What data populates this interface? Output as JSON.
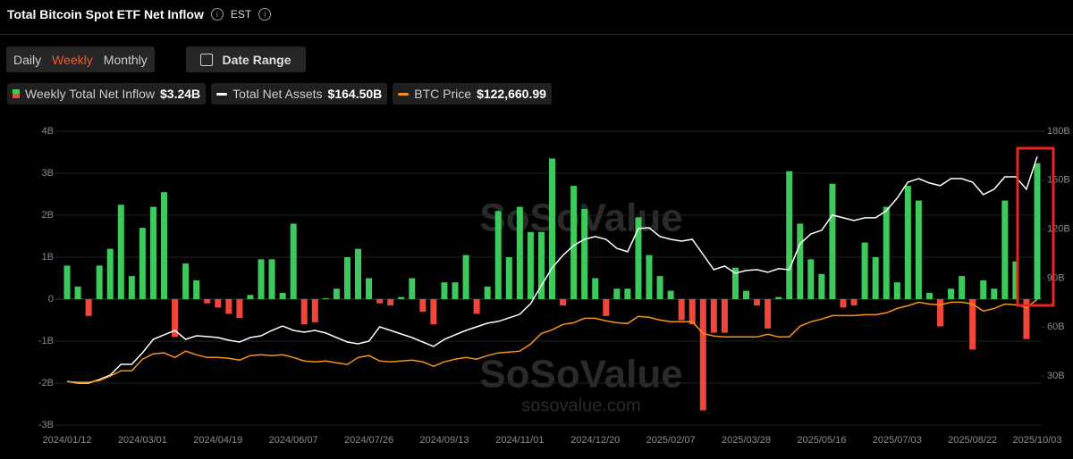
{
  "header": {
    "title": "Total Bitcoin Spot ETF Net Inflow",
    "timezone": "EST",
    "periods": [
      "Daily",
      "Weekly",
      "Monthly"
    ],
    "active_period": 1,
    "date_range": "Date Range"
  },
  "watermark": [
    "SoSoValue",
    "sosovalue.com"
  ],
  "chart_data": {
    "type": "combo",
    "categories": [
      "2024/01/12",
      null,
      null,
      null,
      null,
      null,
      null,
      "2024/03/01",
      null,
      null,
      null,
      null,
      null,
      null,
      "2024/04/19",
      null,
      null,
      null,
      null,
      null,
      null,
      "2024/06/07",
      null,
      null,
      null,
      null,
      null,
      null,
      "2024/07/26",
      null,
      null,
      null,
      null,
      null,
      null,
      "2024/09/13",
      null,
      null,
      null,
      null,
      null,
      null,
      "2024/11/01",
      null,
      null,
      null,
      null,
      null,
      null,
      "2024/12/20",
      null,
      null,
      null,
      null,
      null,
      null,
      "2025/02/07",
      null,
      null,
      null,
      null,
      null,
      null,
      "2025/03/28",
      null,
      null,
      null,
      null,
      null,
      null,
      "2025/05/16",
      null,
      null,
      null,
      null,
      null,
      null,
      "2025/07/03",
      null,
      null,
      null,
      null,
      null,
      null,
      "2025/08/22",
      null,
      null,
      null,
      null,
      null,
      "2025/10/03"
    ],
    "series": [
      {
        "name": "Weekly Total Net Inflow",
        "legend_value": "$3.24B",
        "type": "bar",
        "color": "#3ec95c",
        "negative_color": "#f0463c",
        "values": [
          0.8,
          0.3,
          -0.4,
          0.8,
          1.2,
          2.25,
          0.55,
          1.7,
          2.2,
          2.55,
          -0.9,
          0.85,
          0.45,
          -0.1,
          -0.2,
          -0.35,
          -0.45,
          0.1,
          0.95,
          0.95,
          0.15,
          1.8,
          -0.6,
          -0.55,
          0.02,
          0.25,
          1.0,
          1.2,
          0.5,
          -0.1,
          -0.15,
          0.05,
          0.5,
          -0.3,
          -0.6,
          0.4,
          0.4,
          1.05,
          -0.35,
          0.3,
          2.1,
          1.0,
          2.2,
          1.6,
          1.6,
          3.35,
          -0.15,
          2.7,
          2.15,
          0.5,
          -0.4,
          0.25,
          0.25,
          1.95,
          1.05,
          0.55,
          0.2,
          -0.5,
          -0.6,
          -2.65,
          -0.8,
          -0.8,
          0.75,
          0.2,
          -0.15,
          -0.7,
          0.05,
          3.05,
          1.8,
          0.95,
          0.6,
          2.75,
          -0.2,
          -0.15,
          1.35,
          1.0,
          2.2,
          0.4,
          2.7,
          2.35,
          0.15,
          -0.65,
          0.25,
          0.55,
          -1.2,
          0.45,
          0.25,
          2.35,
          0.9,
          -0.95,
          3.24
        ]
      },
      {
        "name": "Total Net Assets",
        "legend_value": "$164.50B",
        "type": "line",
        "axis": "y2",
        "color": "#ffffff",
        "values": [
          26.8,
          25.7,
          25.7,
          27.9,
          30.6,
          37.2,
          37.2,
          44.3,
          52.5,
          55.3,
          58.0,
          52.5,
          54.7,
          54.2,
          53.6,
          52.0,
          50.9,
          53.6,
          54.7,
          58.0,
          60.7,
          58.0,
          56.9,
          58.0,
          56.4,
          53.6,
          50.9,
          49.8,
          51.4,
          60.2,
          58.0,
          55.8,
          53.6,
          50.9,
          48.2,
          52.5,
          55.3,
          58.0,
          60.2,
          62.4,
          63.5,
          65.7,
          67.9,
          74.4,
          85.4,
          96.3,
          104.0,
          110.0,
          113.8,
          115.5,
          113.8,
          108.3,
          106.2,
          120.4,
          120.9,
          115.5,
          113.8,
          112.7,
          113.8,
          104.5,
          95.2,
          97.4,
          93.0,
          94.7,
          95.2,
          93.6,
          95.8,
          95.2,
          111.1,
          117.1,
          119.3,
          128.6,
          127.0,
          125.3,
          127.0,
          127.0,
          131.3,
          139.0,
          148.8,
          151.0,
          148.3,
          146.7,
          151.0,
          151.0,
          148.8,
          141.2,
          144.5,
          152.1,
          152.1,
          144.5,
          164.5
        ]
      },
      {
        "name": "BTC Price",
        "legend_value": "$122,660.99",
        "type": "line",
        "axis": "y3",
        "color": "#f7931a",
        "values": [
          45800,
          45000,
          45000,
          46700,
          50800,
          55800,
          55800,
          66700,
          71700,
          72500,
          68300,
          74200,
          70800,
          68300,
          68300,
          67500,
          65800,
          70000,
          70800,
          70000,
          70800,
          68300,
          65000,
          64200,
          65000,
          63300,
          61700,
          68300,
          70000,
          65000,
          64200,
          65000,
          65800,
          64200,
          60000,
          64200,
          66700,
          68300,
          66700,
          70000,
          72500,
          73300,
          74200,
          80800,
          90800,
          94200,
          99200,
          100800,
          105000,
          105000,
          102500,
          100800,
          100000,
          106700,
          105800,
          103300,
          101700,
          101700,
          101700,
          90800,
          88300,
          87500,
          87500,
          87500,
          87500,
          90000,
          87500,
          87500,
          97500,
          101700,
          104200,
          107500,
          107500,
          107500,
          108300,
          108300,
          110000,
          114200,
          116700,
          120000,
          118300,
          117500,
          120000,
          120000,
          118300,
          111700,
          114200,
          118300,
          117500,
          115000,
          122660.99
        ]
      }
    ],
    "ylim": [
      -3,
      4
    ],
    "yticks": [
      {
        "value": -3,
        "label": "-3B"
      },
      {
        "value": -2,
        "label": "-2B"
      },
      {
        "value": -1,
        "label": "-1B"
      },
      0,
      {
        "value": 1,
        "label": "1B"
      },
      {
        "value": 2,
        "label": "2B"
      },
      {
        "value": 3,
        "label": "3B"
      },
      {
        "value": 4,
        "label": "4B"
      }
    ],
    "y2lim": [
      0,
      180
    ],
    "y2ticks": [
      {
        "value": 30,
        "label": "30B"
      },
      {
        "value": 60,
        "label": "60B"
      },
      {
        "value": 90,
        "label": "90B"
      },
      {
        "value": 120,
        "label": "120B"
      },
      {
        "value": 150,
        "label": "150B"
      },
      {
        "value": 180,
        "label": "180B"
      }
    ],
    "y3lim": [
      5000,
      280000
    ],
    "grid": true
  }
}
